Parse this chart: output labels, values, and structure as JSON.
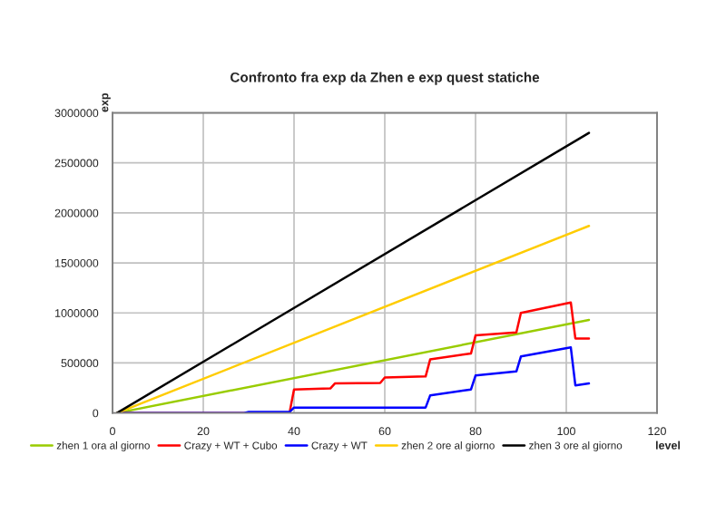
{
  "chart_data": {
    "type": "line",
    "title": "Confronto fra exp da Zhen e exp quest statiche",
    "xlabel": "level",
    "ylabel": "exp",
    "xlim": [
      0,
      120
    ],
    "xticks": [
      0,
      20,
      40,
      60,
      80,
      100,
      120
    ],
    "ylim": [
      0,
      3000000
    ],
    "yticks": [
      0,
      500000,
      1000000,
      1500000,
      2000000,
      2500000,
      3000000
    ],
    "grid": true,
    "legend": "bottom",
    "marker": "none",
    "line_style": "solid",
    "series": [
      {
        "name": "zhen 1 ora al giorno",
        "color": "#99cc00",
        "x": [
          1,
          105
        ],
        "values": [
          0,
          930000
        ]
      },
      {
        "name": "Crazy + WT + Cubo",
        "color": "#ff0000",
        "x": [
          1,
          39,
          40,
          48,
          49,
          59,
          60,
          69,
          70,
          79,
          80,
          89,
          90,
          101,
          102,
          105
        ],
        "values": [
          0,
          0,
          235000,
          245000,
          295000,
          300000,
          355000,
          365000,
          535000,
          595000,
          775000,
          805000,
          1000000,
          1105000,
          745000,
          745000
        ]
      },
      {
        "name": "Crazy + WT",
        "color": "#0000ff",
        "x": [
          1,
          29,
          30,
          39,
          40,
          69,
          70,
          79,
          80,
          89,
          90,
          101,
          102,
          105
        ],
        "values": [
          0,
          0,
          10000,
          10000,
          54000,
          54000,
          175000,
          235000,
          374000,
          415000,
          565000,
          655000,
          276000,
          295000
        ]
      },
      {
        "name": "zhen 2 ore al giorno",
        "color": "#ffcc00",
        "x": [
          1,
          105
        ],
        "values": [
          0,
          1870000
        ]
      },
      {
        "name": "zhen 3 ore al giorno",
        "color": "#000000",
        "x": [
          1,
          105
        ],
        "values": [
          0,
          2800000
        ]
      }
    ]
  }
}
